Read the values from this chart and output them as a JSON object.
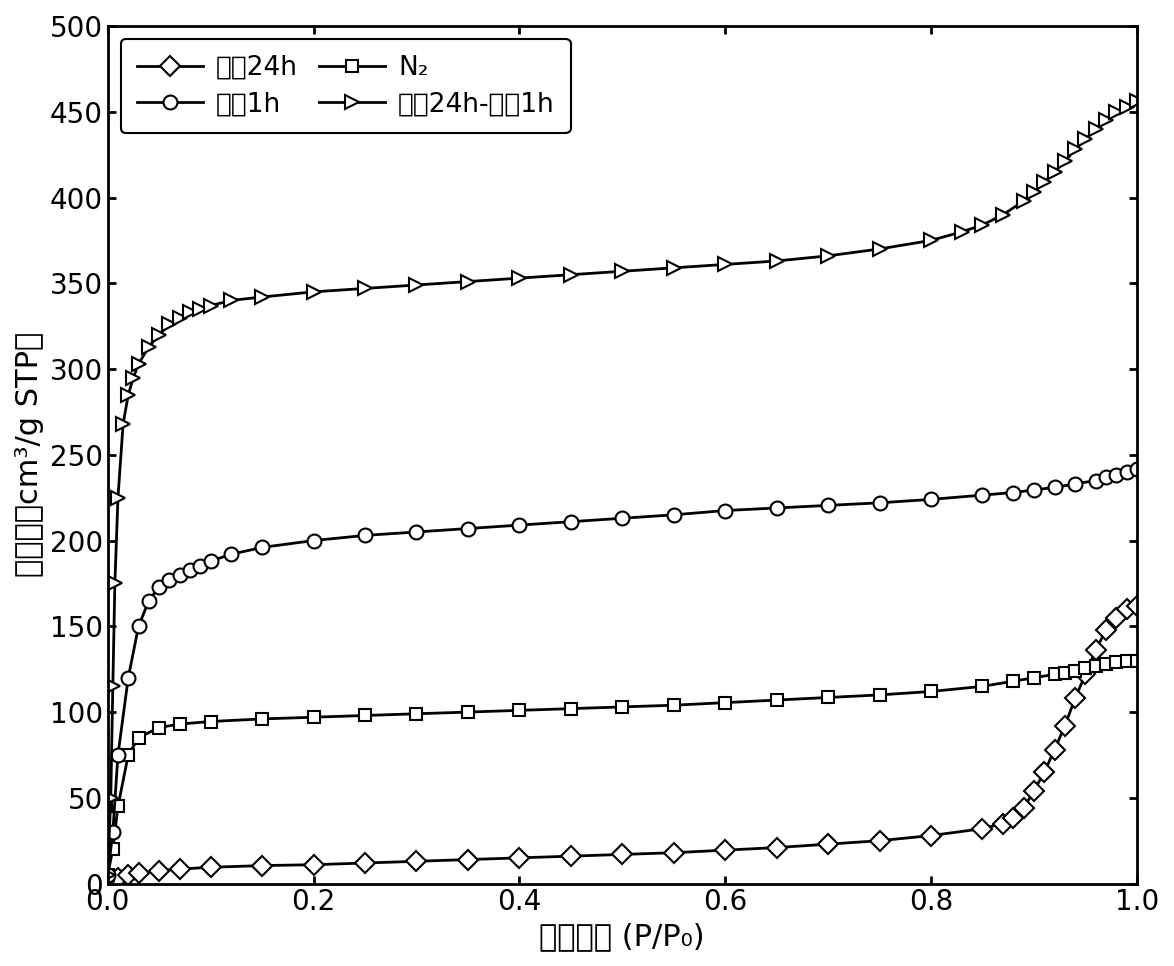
{
  "title": "",
  "xlabel": "相对压强 (P/P₀)",
  "ylabel": "吸附量（cm³/g STP）",
  "xlim": [
    0.0,
    1.0
  ],
  "ylim": [
    0,
    500
  ],
  "yticks": [
    0,
    50,
    100,
    150,
    200,
    250,
    300,
    350,
    400,
    450,
    500
  ],
  "xticks": [
    0.0,
    0.2,
    0.4,
    0.6,
    0.8,
    1.0
  ],
  "series": [
    {
      "label": "水灀24h",
      "x": [
        0.0,
        0.005,
        0.01,
        0.02,
        0.03,
        0.05,
        0.07,
        0.1,
        0.15,
        0.2,
        0.25,
        0.3,
        0.35,
        0.4,
        0.45,
        0.5,
        0.55,
        0.6,
        0.65,
        0.7,
        0.75,
        0.8,
        0.85,
        0.87,
        0.88,
        0.89,
        0.9,
        0.91,
        0.92,
        0.93,
        0.94,
        0.95,
        0.96,
        0.97,
        0.98,
        0.99,
        1.0
      ],
      "y": [
        1.5,
        2.0,
        3.0,
        5.0,
        6.0,
        7.5,
        8.5,
        9.5,
        10.5,
        11.0,
        12.0,
        13.0,
        14.0,
        15.0,
        16.0,
        17.0,
        18.0,
        19.5,
        21.0,
        23.0,
        25.0,
        28.0,
        32.0,
        35.0,
        38.0,
        44.0,
        54.0,
        65.0,
        78.0,
        92.0,
        108.0,
        122.0,
        136.0,
        148.0,
        155.0,
        160.0,
        162.0
      ],
      "marker": "D",
      "markersize": 10,
      "color": "black",
      "linestyle": "-"
    },
    {
      "label": "N₂",
      "x": [
        0.0,
        0.005,
        0.01,
        0.02,
        0.03,
        0.05,
        0.07,
        0.1,
        0.15,
        0.2,
        0.25,
        0.3,
        0.35,
        0.4,
        0.45,
        0.5,
        0.55,
        0.6,
        0.65,
        0.7,
        0.75,
        0.8,
        0.85,
        0.88,
        0.9,
        0.92,
        0.93,
        0.94,
        0.95,
        0.96,
        0.97,
        0.98,
        0.99,
        1.0
      ],
      "y": [
        5.0,
        20.0,
        45.0,
        75.0,
        85.0,
        91.0,
        93.0,
        94.5,
        96.0,
        97.0,
        98.0,
        99.0,
        100.0,
        101.0,
        102.0,
        103.0,
        104.0,
        105.5,
        107.0,
        108.5,
        110.0,
        112.0,
        115.0,
        118.0,
        120.0,
        122.0,
        123.0,
        124.0,
        125.5,
        127.0,
        128.0,
        129.0,
        129.5,
        130.0
      ],
      "marker": "s",
      "markersize": 9,
      "color": "black",
      "linestyle": "-"
    },
    {
      "label": "熊盐1h",
      "x": [
        0.0,
        0.005,
        0.01,
        0.02,
        0.03,
        0.04,
        0.05,
        0.06,
        0.07,
        0.08,
        0.09,
        0.1,
        0.12,
        0.15,
        0.2,
        0.25,
        0.3,
        0.35,
        0.4,
        0.45,
        0.5,
        0.55,
        0.6,
        0.65,
        0.7,
        0.75,
        0.8,
        0.85,
        0.88,
        0.9,
        0.92,
        0.94,
        0.96,
        0.97,
        0.98,
        0.99,
        1.0
      ],
      "y": [
        5.0,
        30.0,
        75.0,
        120.0,
        150.0,
        165.0,
        173.0,
        177.0,
        180.0,
        183.0,
        185.0,
        188.0,
        192.0,
        196.0,
        200.0,
        203.0,
        205.0,
        207.0,
        209.0,
        211.0,
        213.0,
        215.0,
        217.5,
        219.0,
        220.5,
        222.0,
        224.0,
        226.5,
        228.0,
        229.5,
        231.0,
        233.0,
        235.0,
        237.0,
        238.5,
        240.0,
        242.0
      ],
      "marker": "o",
      "markersize": 10,
      "color": "black",
      "linestyle": "-"
    },
    {
      "label": "水灀24h-熊盐1h",
      "x": [
        0.0,
        0.003,
        0.005,
        0.007,
        0.01,
        0.015,
        0.02,
        0.025,
        0.03,
        0.04,
        0.05,
        0.06,
        0.07,
        0.08,
        0.09,
        0.1,
        0.12,
        0.15,
        0.2,
        0.25,
        0.3,
        0.35,
        0.4,
        0.45,
        0.5,
        0.55,
        0.6,
        0.65,
        0.7,
        0.75,
        0.8,
        0.83,
        0.85,
        0.87,
        0.89,
        0.9,
        0.91,
        0.92,
        0.93,
        0.94,
        0.95,
        0.96,
        0.97,
        0.98,
        0.99,
        1.0
      ],
      "y": [
        5.0,
        50.0,
        115.0,
        175.0,
        225.0,
        268.0,
        285.0,
        295.0,
        303.0,
        313.0,
        320.0,
        326.0,
        330.0,
        333.0,
        335.0,
        337.0,
        340.0,
        342.0,
        345.0,
        347.0,
        349.0,
        351.0,
        353.0,
        355.0,
        357.0,
        359.0,
        361.0,
        363.0,
        366.0,
        370.0,
        375.0,
        380.0,
        384.0,
        390.0,
        398.0,
        403.0,
        409.0,
        415.0,
        421.0,
        428.0,
        434.0,
        440.0,
        445.0,
        450.0,
        453.0,
        456.0
      ],
      "marker": ">",
      "markersize": 10,
      "color": "black",
      "linestyle": "-"
    }
  ],
  "legend_order": [
    0,
    1,
    2,
    3
  ],
  "figsize": [
    11.74,
    9.66
  ],
  "dpi": 100,
  "background_color": "#ffffff",
  "axis_linewidth": 2.0,
  "tick_fontsize": 20,
  "label_fontsize": 22,
  "legend_fontsize": 19
}
